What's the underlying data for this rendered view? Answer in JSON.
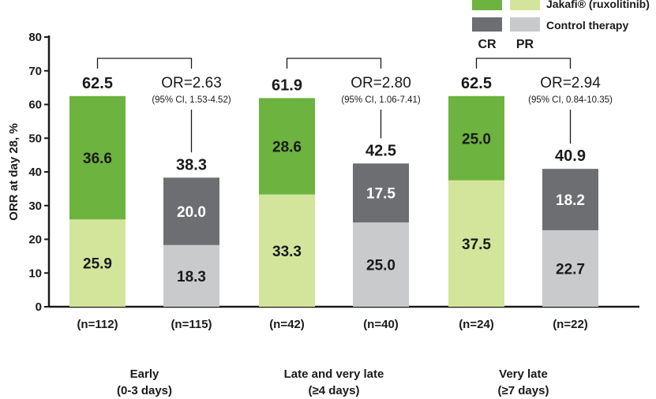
{
  "chart_data": {
    "type": "bar",
    "stacked": true,
    "ylabel": "ORR at day 28, %",
    "ylim": [
      0,
      80
    ],
    "yticks": [
      0,
      10,
      20,
      30,
      40,
      50,
      60,
      70,
      80
    ],
    "legend": {
      "column_labels": [
        "CR",
        "PR"
      ],
      "rows": [
        {
          "name": "Jakafi® (ruxolitinib)",
          "cr_color": "#6db33f",
          "pr_color": "#d2e59b"
        },
        {
          "name": "Control therapy",
          "cr_color": "#6d6e71",
          "pr_color": "#c9cacc"
        }
      ],
      "placement": "top-right"
    },
    "groups": [
      {
        "label_line1": "Early",
        "label_line2": "(0-3 days)",
        "odds_ratio": "OR=2.63",
        "ci": "(95% CI, 1.53-4.52)",
        "bars": [
          {
            "arm": "Jakafi",
            "n": "(n=112)",
            "cr": 36.6,
            "pr": 25.9,
            "total": 62.5
          },
          {
            "arm": "Control",
            "n": "(n=115)",
            "cr": 20.0,
            "pr": 18.3,
            "total": 38.3
          }
        ]
      },
      {
        "label_line1": "Late and very late",
        "label_line2": "(≥4 days)",
        "odds_ratio": "OR=2.80",
        "ci": "(95% CI, 1.06-7.41)",
        "bars": [
          {
            "arm": "Jakafi",
            "n": "(n=42)",
            "cr": 28.6,
            "pr": 33.3,
            "total": 61.9
          },
          {
            "arm": "Control",
            "n": "(n=40)",
            "cr": 17.5,
            "pr": 25.0,
            "total": 42.5
          }
        ]
      },
      {
        "label_line1": "Very late",
        "label_line2": "(≥7 days)",
        "odds_ratio": "OR=2.94",
        "ci": "(95% CI, 0.84-10.35)",
        "bars": [
          {
            "arm": "Jakafi",
            "n": "(n=24)",
            "cr": 25.0,
            "pr": 37.5,
            "total": 62.5
          },
          {
            "arm": "Control",
            "n": "(n=22)",
            "cr": 18.2,
            "pr": 22.7,
            "total": 40.9
          }
        ]
      }
    ]
  }
}
